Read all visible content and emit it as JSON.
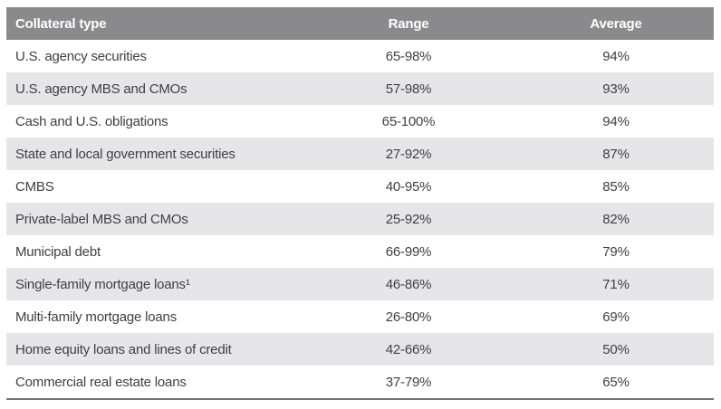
{
  "chart_data": {
    "type": "table",
    "columns": [
      "Collateral type",
      "Range",
      "Average"
    ],
    "rows": [
      {
        "collateral": "U.S. agency securities",
        "range": "65-98%",
        "average": "94%"
      },
      {
        "collateral": "U.S. agency MBS and CMOs",
        "range": "57-98%",
        "average": "93%"
      },
      {
        "collateral": "Cash and U.S. obligations",
        "range": "65-100%",
        "average": "94%"
      },
      {
        "collateral": "State and local government securities",
        "range": "27-92%",
        "average": "87%"
      },
      {
        "collateral": "CMBS",
        "range": "40-95%",
        "average": "85%"
      },
      {
        "collateral": "Private-label MBS and CMOs",
        "range": "25-92%",
        "average": "82%"
      },
      {
        "collateral": "Municipal debt",
        "range": "66-99%",
        "average": "79%"
      },
      {
        "collateral": "Single-family mortgage loans¹",
        "range": "46-86%",
        "average": "71%"
      },
      {
        "collateral": "Multi-family mortgage loans",
        "range": "26-80%",
        "average": "69%"
      },
      {
        "collateral": "Home equity loans and lines of credit",
        "range": "42-66%",
        "average": "50%"
      },
      {
        "collateral": "Commercial real estate loans",
        "range": "37-79%",
        "average": "65%"
      }
    ]
  },
  "colors": {
    "header_bg": "#8a8a8d",
    "header_text": "#ffffff",
    "row_bg": "#ffffff",
    "row_alt_bg": "#e6e6e8",
    "body_text": "#404042",
    "bottom_border": "#737376"
  }
}
